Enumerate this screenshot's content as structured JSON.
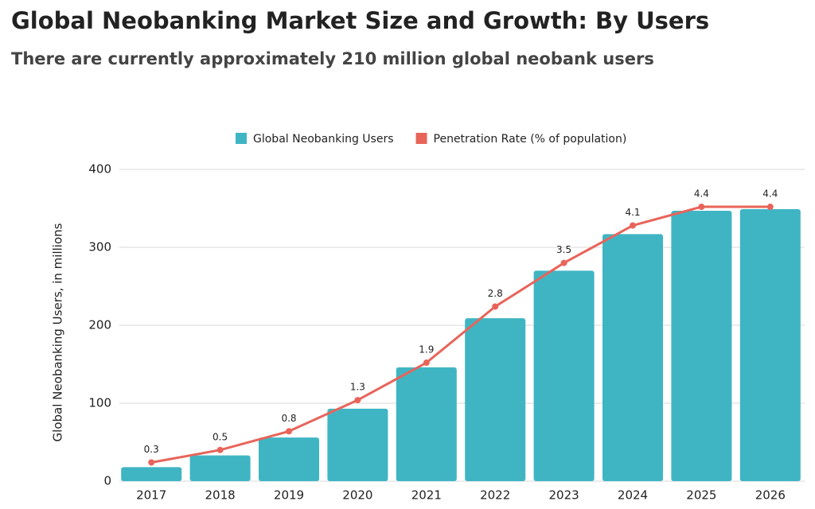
{
  "chart_data": {
    "type": "bar",
    "title": "Global Neobanking Market Size and Growth: By Users",
    "subtitle": "There are currently approximately 210 million global neobank users",
    "ylabel": "Global Neobanking Users, in millions",
    "categories": [
      "2017",
      "2018",
      "2019",
      "2020",
      "2021",
      "2022",
      "2023",
      "2024",
      "2025",
      "2026"
    ],
    "series": [
      {
        "name": "Global Neobanking Users",
        "color": "#3fb5c3",
        "values": [
          18,
          33,
          56,
          93,
          146,
          209,
          270,
          317,
          347,
          349
        ]
      },
      {
        "name": "Penetration Rate (% of population)",
        "color": "#e8645a",
        "type": "line",
        "axis": "y2",
        "values": [
          0.3,
          0.5,
          0.8,
          1.3,
          1.9,
          2.8,
          3.5,
          4.1,
          4.4,
          4.4
        ]
      }
    ],
    "ylim": [
      0,
      400
    ],
    "yticks": [
      0,
      100,
      200,
      300,
      400
    ],
    "y2lim": [
      0,
      5
    ],
    "grid": true,
    "legend": "top"
  }
}
